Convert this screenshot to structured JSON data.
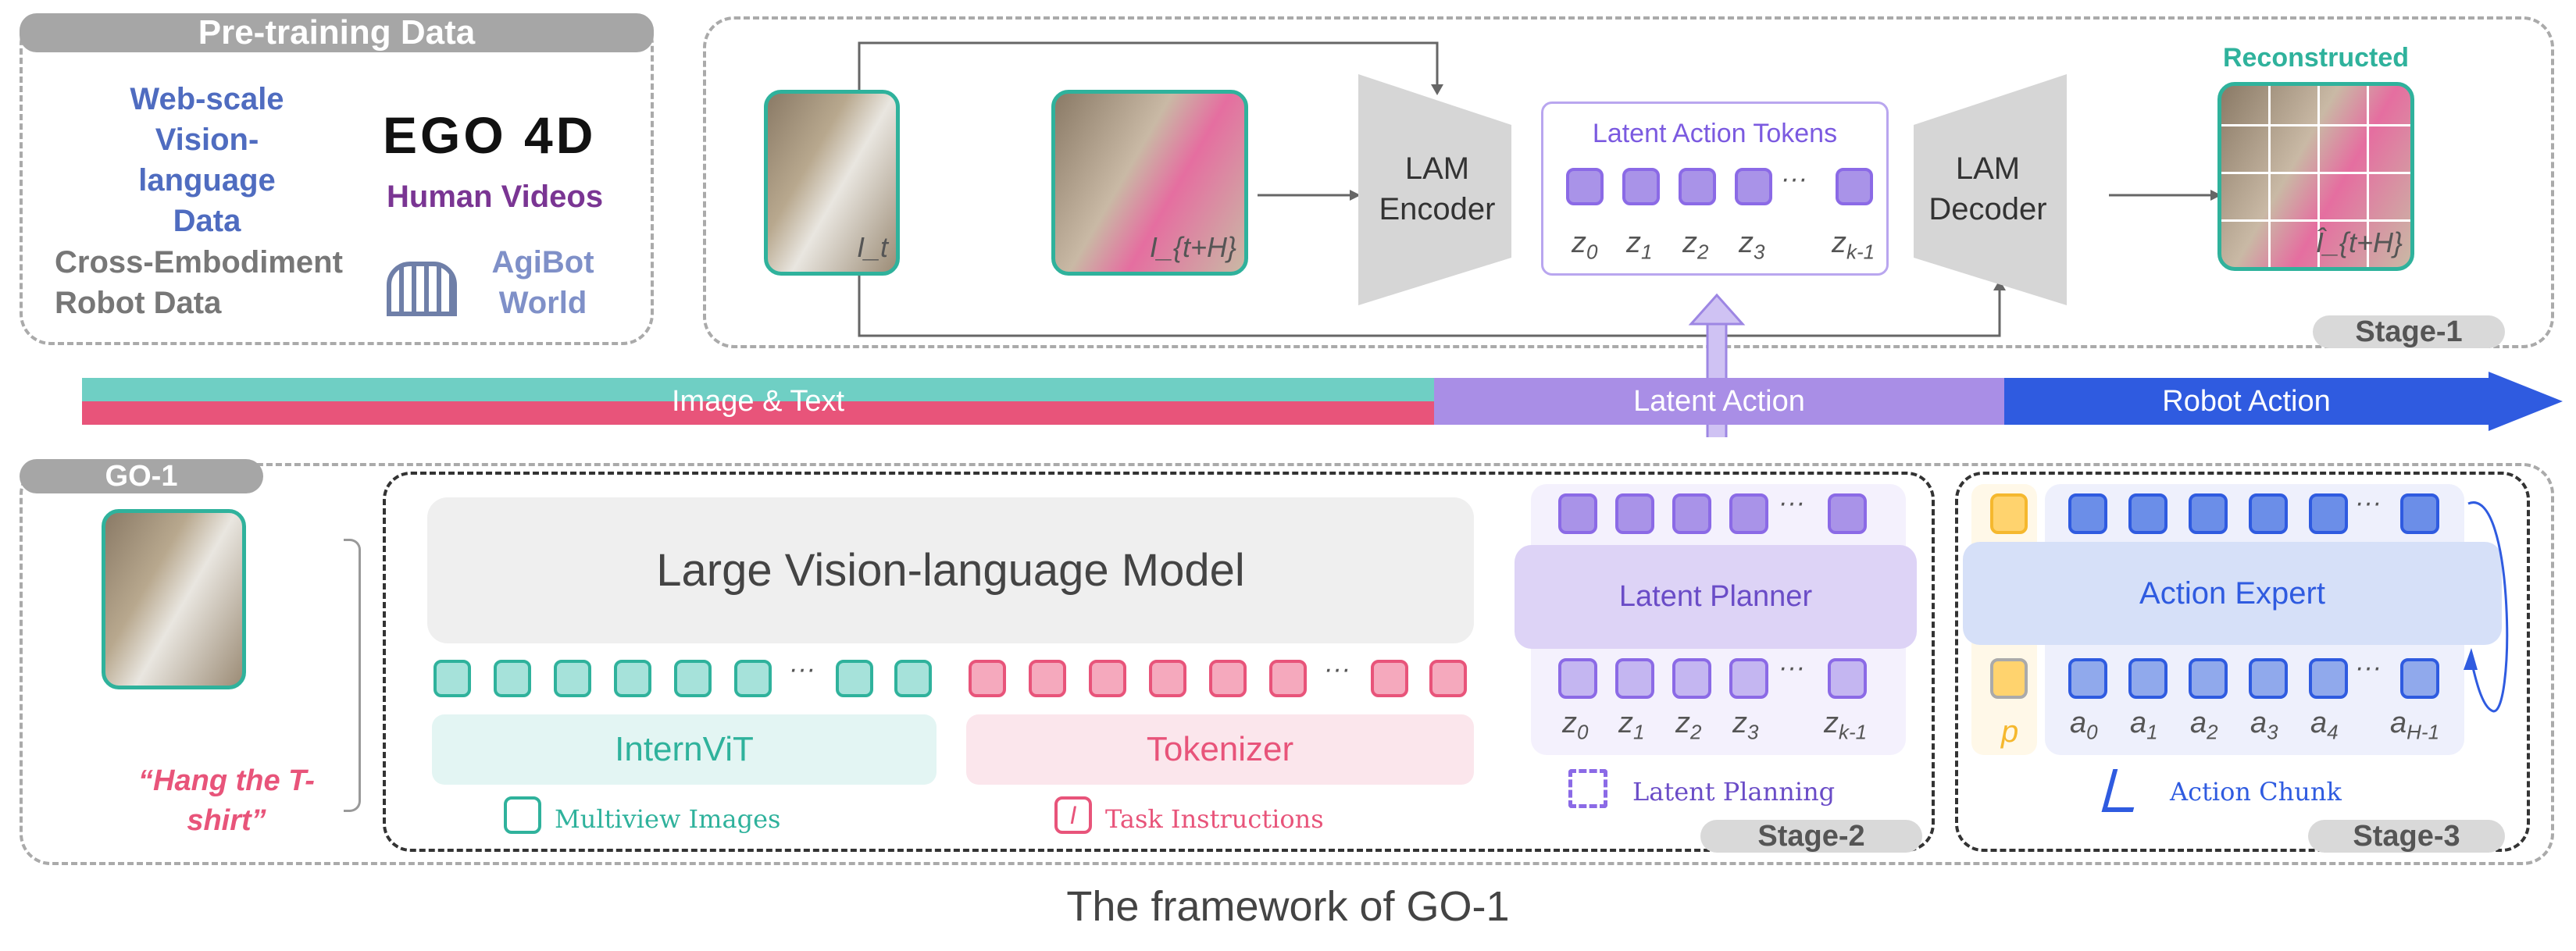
{
  "pretraining": {
    "title": "Pre-training Data",
    "web": "Web-scale Vision-language Data",
    "ego_logo": "EGO 4D",
    "human_videos": "Human Videos",
    "cross": "Cross-Embodiment Robot Data",
    "agibot": "AgiBot World"
  },
  "stage1": {
    "it": "I_t",
    "ith": "I_{t+H}",
    "encoder": "LAM Encoder",
    "tokens_title": "Latent Action Tokens",
    "decoder": "LAM Decoder",
    "reconstructed": "Reconstructed",
    "ihat": "Î_{t+H}",
    "z_labels": [
      "z0",
      "z1",
      "z2",
      "z3",
      "zk-1"
    ],
    "stage": "Stage-1"
  },
  "bar": {
    "image_text": "Image & Text",
    "latent": "Latent Action",
    "robot": "Robot Action",
    "colors": {
      "teal": "#6fcfc4",
      "pink": "#e8547a",
      "purple": "#a98ee6",
      "blue": "#2f5be0"
    }
  },
  "go1": {
    "label": "GO-1",
    "instruction": "“Hang the T-shirt”",
    "lvlm": "Large Vision-language Model",
    "internvit": "InternViT",
    "tokenizer": "Tokenizer",
    "multiview": "Multiview Images",
    "task": "Task Instructions",
    "latent_planner": "Latent Planner",
    "latent_planning": "Latent Planning",
    "z_labels": [
      "z0",
      "z1",
      "z2",
      "z3",
      "zk-1"
    ],
    "stage2": "Stage-2",
    "action_expert": "Action Expert",
    "p": "p",
    "a_labels": [
      "a0",
      "a1",
      "a2",
      "a3",
      "a4",
      "aH-1"
    ],
    "action_chunk": "Action Chunk",
    "stage3": "Stage-3",
    "ellipsis": "···"
  },
  "caption": "The framework of GO-1"
}
